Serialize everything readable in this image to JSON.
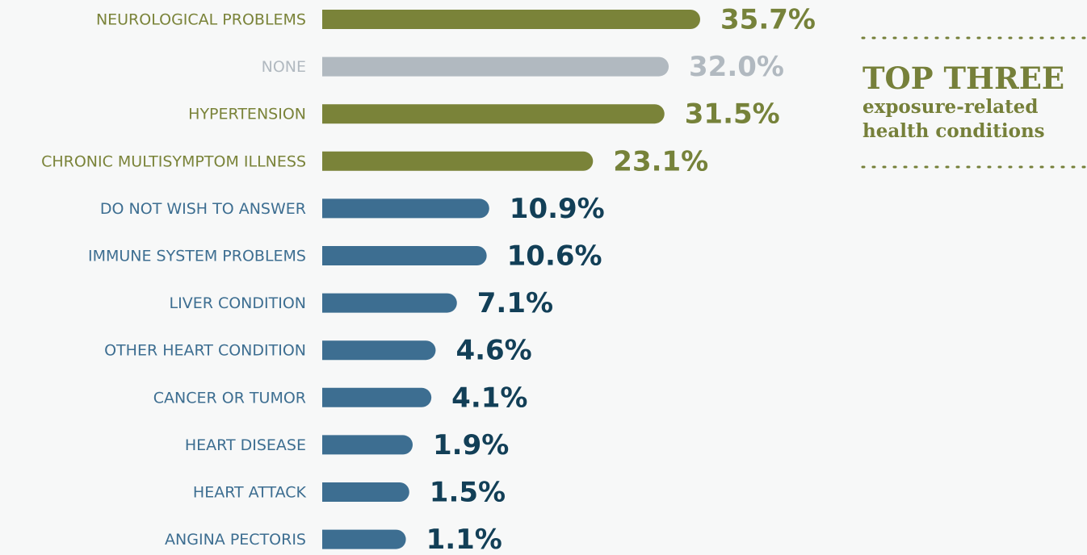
{
  "chart_data": {
    "type": "bar",
    "orientation": "horizontal",
    "categories": [
      "NEUROLOGICAL PROBLEMS",
      "NONE",
      "HYPERTENSION",
      "CHRONIC MULTISYMPTOM ILLNESS",
      "DO NOT WISH TO ANSWER",
      "IMMUNE SYSTEM PROBLEMS",
      "LIVER CONDITION",
      "OTHER HEART CONDITION",
      "CANCER OR TUMOR",
      "HEART DISEASE",
      "HEART ATTACK",
      "ANGINA PECTORIS"
    ],
    "values": [
      35.7,
      32.0,
      31.5,
      23.1,
      10.9,
      10.6,
      7.1,
      4.6,
      4.1,
      1.9,
      1.5,
      1.1
    ],
    "value_labels": [
      "35.7%",
      "32.0%",
      "31.5%",
      "23.1%",
      "10.9%",
      "10.6%",
      "7.1%",
      "4.6%",
      "4.1%",
      "1.9%",
      "1.5%",
      "1.1%"
    ],
    "colors": [
      "#7a8339",
      "#b1b9c0",
      "#7a8339",
      "#7a8339",
      "#3d6e91",
      "#3d6e91",
      "#3d6e91",
      "#3d6e91",
      "#3d6e91",
      "#3d6e91",
      "#3d6e91",
      "#3d6e91"
    ],
    "value_label_colors": [
      "#76823a",
      "#b1b9c0",
      "#76823a",
      "#76823a",
      "#123f57",
      "#123f57",
      "#123f57",
      "#123f57",
      "#123f57",
      "#123f57",
      "#123f57",
      "#123f57"
    ],
    "annotation": {
      "title": "TOP THREE",
      "lines": [
        "exposure-related",
        "health conditions"
      ]
    }
  }
}
